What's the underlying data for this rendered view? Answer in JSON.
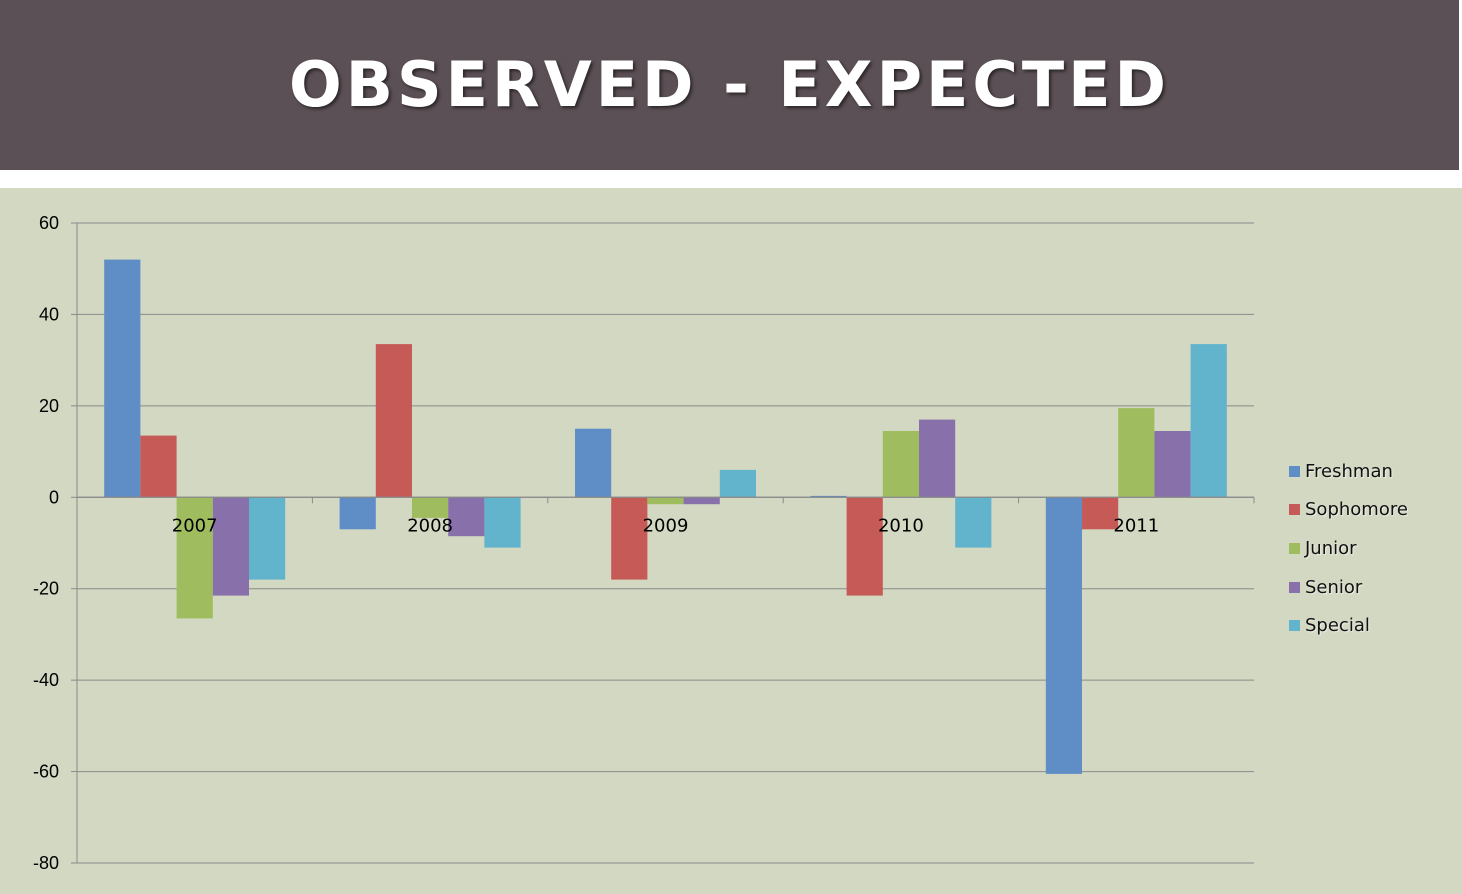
{
  "slide": {
    "title": "OBSERVED - EXPECTED"
  },
  "chart_data": {
    "type": "bar",
    "title": "",
    "xlabel": "",
    "ylabel": "",
    "categories": [
      "2007",
      "2008",
      "2009",
      "2010",
      "2011"
    ],
    "ylim": [
      -80,
      60
    ],
    "yticks": [
      60,
      40,
      20,
      0,
      -20,
      -40,
      -60,
      -80
    ],
    "grid": true,
    "legend_position": "right",
    "series": [
      {
        "name": "Freshman",
        "color": "#5f8ec7",
        "values": [
          52,
          -7,
          15,
          0.3,
          -60.5
        ]
      },
      {
        "name": "Sophomore",
        "color": "#c65a57",
        "values": [
          13.5,
          33.5,
          -18,
          -21.5,
          -7
        ]
      },
      {
        "name": "Junior",
        "color": "#9fbd5f",
        "values": [
          -26.5,
          -4.5,
          -1.5,
          14.5,
          19.5
        ]
      },
      {
        "name": "Senior",
        "color": "#8871ab",
        "values": [
          -21.5,
          -8.5,
          -1.5,
          17,
          14.5
        ]
      },
      {
        "name": "Special",
        "color": "#62b3cc",
        "values": [
          -18,
          -11,
          6,
          -11,
          33.5
        ]
      }
    ]
  }
}
